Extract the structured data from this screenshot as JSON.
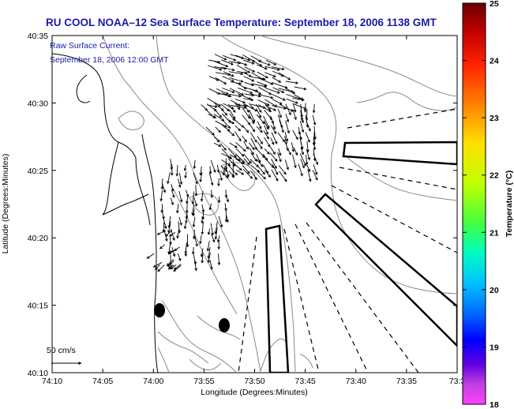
{
  "title": "RU COOL  NOAA–12  Sea Surface Temperature:  September 18, 2006 1138 GMT",
  "subtitle_line1": "Raw Surface Current:",
  "subtitle_line2": "September 18, 2006 12:00 GMT",
  "scale_label": "50 cm/s",
  "xlabel": "Longitude (Degrees:Minutes)",
  "ylabel": "Latitude (Degrees:Minutes)",
  "colorbar_label": "Temperature (°C)",
  "x_ticks": [
    "74:10",
    "74:05",
    "74:00",
    "73:55",
    "73:50",
    "73:45",
    "73:40",
    "73:35",
    "73:3"
  ],
  "y_ticks": [
    "40:35",
    "40:30",
    "40:25",
    "40:20",
    "40:15",
    "40:10"
  ],
  "colorbar_ticks": [
    "25",
    "24",
    "23",
    "22",
    "21",
    "20",
    "19",
    "18"
  ],
  "colorbar_range": [
    18,
    25
  ],
  "colors": {
    "title": "#1a1aa8",
    "land": "#ffffff",
    "contour": "#8a8a8a",
    "coast": "#000000"
  }
}
